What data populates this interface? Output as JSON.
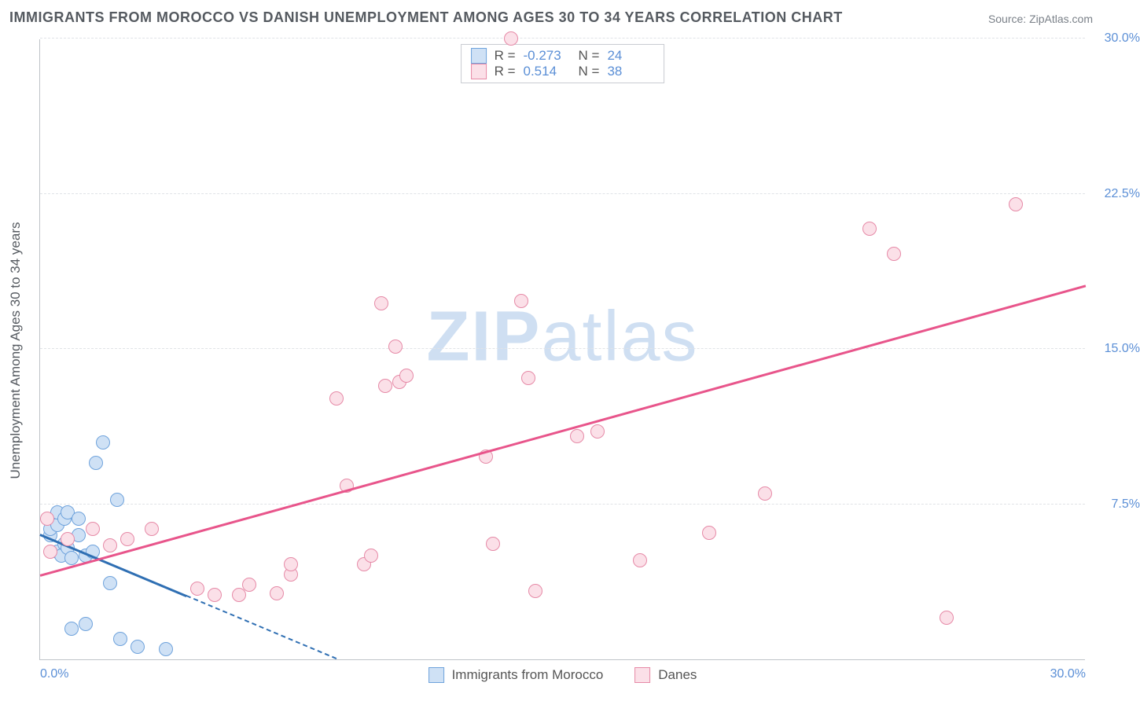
{
  "title": "IMMIGRANTS FROM MOROCCO VS DANISH UNEMPLOYMENT AMONG AGES 30 TO 34 YEARS CORRELATION CHART",
  "source": "Source: ZipAtlas.com",
  "y_axis_label": "Unemployment Among Ages 30 to 34 years",
  "watermark_bold": "ZIP",
  "watermark_light": "atlas",
  "chart": {
    "type": "scatter",
    "xlim": [
      0,
      30
    ],
    "ylim": [
      0,
      30
    ],
    "x_ticks": [
      {
        "v": 0,
        "label": "0.0%"
      },
      {
        "v": 30,
        "label": "30.0%"
      }
    ],
    "y_ticks": [
      {
        "v": 7.5,
        "label": "7.5%"
      },
      {
        "v": 15,
        "label": "15.0%"
      },
      {
        "v": 22.5,
        "label": "22.5%"
      },
      {
        "v": 30,
        "label": "30.0%"
      }
    ],
    "grid_color": "#e0e3e7",
    "axis_color": "#bfc3c8",
    "background_color": "#ffffff",
    "tick_label_color": "#5b8fd6",
    "series": [
      {
        "name": "Immigrants from Morocco",
        "fill": "#cfe1f5",
        "stroke": "#6fa3dc",
        "marker_radius": 9,
        "reg": {
          "x0": 0,
          "y0": 6.0,
          "x1": 8.5,
          "y1": 0,
          "color": "#2f6fb3",
          "dashed_after_x": 4.2
        },
        "R": "-0.273",
        "N": "24",
        "points": [
          {
            "x": 0.3,
            "y": 6.0
          },
          {
            "x": 0.3,
            "y": 6.3
          },
          {
            "x": 0.5,
            "y": 5.2
          },
          {
            "x": 0.5,
            "y": 6.5
          },
          {
            "x": 0.5,
            "y": 7.1
          },
          {
            "x": 0.6,
            "y": 5.0
          },
          {
            "x": 0.7,
            "y": 5.6
          },
          {
            "x": 0.7,
            "y": 6.8
          },
          {
            "x": 0.8,
            "y": 5.4
          },
          {
            "x": 0.8,
            "y": 7.1
          },
          {
            "x": 0.9,
            "y": 4.9
          },
          {
            "x": 1.1,
            "y": 6.0
          },
          {
            "x": 1.1,
            "y": 6.8
          },
          {
            "x": 1.3,
            "y": 5.0
          },
          {
            "x": 1.5,
            "y": 5.2
          },
          {
            "x": 1.6,
            "y": 9.5
          },
          {
            "x": 1.8,
            "y": 10.5
          },
          {
            "x": 2.0,
            "y": 3.7
          },
          {
            "x": 2.2,
            "y": 7.7
          },
          {
            "x": 2.3,
            "y": 1.0
          },
          {
            "x": 1.3,
            "y": 1.7
          },
          {
            "x": 0.9,
            "y": 1.5
          },
          {
            "x": 2.8,
            "y": 0.6
          },
          {
            "x": 3.6,
            "y": 0.5
          }
        ]
      },
      {
        "name": "Danes",
        "fill": "#fbe0e8",
        "stroke": "#e68aa7",
        "marker_radius": 9,
        "reg": {
          "x0": 0,
          "y0": 4.0,
          "x1": 30,
          "y1": 18.0,
          "color": "#e8558b",
          "dashed_after_x": null
        },
        "R": "0.514",
        "N": "38",
        "points": [
          {
            "x": 0.2,
            "y": 6.8
          },
          {
            "x": 0.3,
            "y": 5.2
          },
          {
            "x": 0.8,
            "y": 5.8
          },
          {
            "x": 1.5,
            "y": 6.3
          },
          {
            "x": 2.0,
            "y": 5.5
          },
          {
            "x": 2.5,
            "y": 5.8
          },
          {
            "x": 3.2,
            "y": 6.3
          },
          {
            "x": 4.5,
            "y": 3.4
          },
          {
            "x": 5.0,
            "y": 3.1
          },
          {
            "x": 5.7,
            "y": 3.1
          },
          {
            "x": 6.0,
            "y": 3.6
          },
          {
            "x": 6.8,
            "y": 3.2
          },
          {
            "x": 7.2,
            "y": 4.1
          },
          {
            "x": 7.2,
            "y": 4.6
          },
          {
            "x": 8.5,
            "y": 12.6
          },
          {
            "x": 8.8,
            "y": 8.4
          },
          {
            "x": 9.3,
            "y": 4.6
          },
          {
            "x": 9.5,
            "y": 5.0
          },
          {
            "x": 9.8,
            "y": 17.2
          },
          {
            "x": 9.9,
            "y": 13.2
          },
          {
            "x": 10.3,
            "y": 13.4
          },
          {
            "x": 10.5,
            "y": 13.7
          },
          {
            "x": 10.2,
            "y": 15.1
          },
          {
            "x": 12.8,
            "y": 9.8
          },
          {
            "x": 13.0,
            "y": 5.6
          },
          {
            "x": 13.8,
            "y": 17.3
          },
          {
            "x": 14.0,
            "y": 13.6
          },
          {
            "x": 14.2,
            "y": 3.3
          },
          {
            "x": 15.4,
            "y": 10.8
          },
          {
            "x": 17.2,
            "y": 4.8
          },
          {
            "x": 19.2,
            "y": 6.1
          },
          {
            "x": 20.8,
            "y": 8.0
          },
          {
            "x": 23.8,
            "y": 20.8
          },
          {
            "x": 24.5,
            "y": 19.6
          },
          {
            "x": 26.0,
            "y": 2.0
          },
          {
            "x": 28.0,
            "y": 22.0
          },
          {
            "x": 13.5,
            "y": 30.0
          },
          {
            "x": 16.0,
            "y": 11.0
          }
        ]
      }
    ]
  },
  "legend_top": {
    "R_label": "R =",
    "N_label": "N ="
  },
  "legend_bottom": {
    "items": [
      "Immigrants from Morocco",
      "Danes"
    ]
  }
}
